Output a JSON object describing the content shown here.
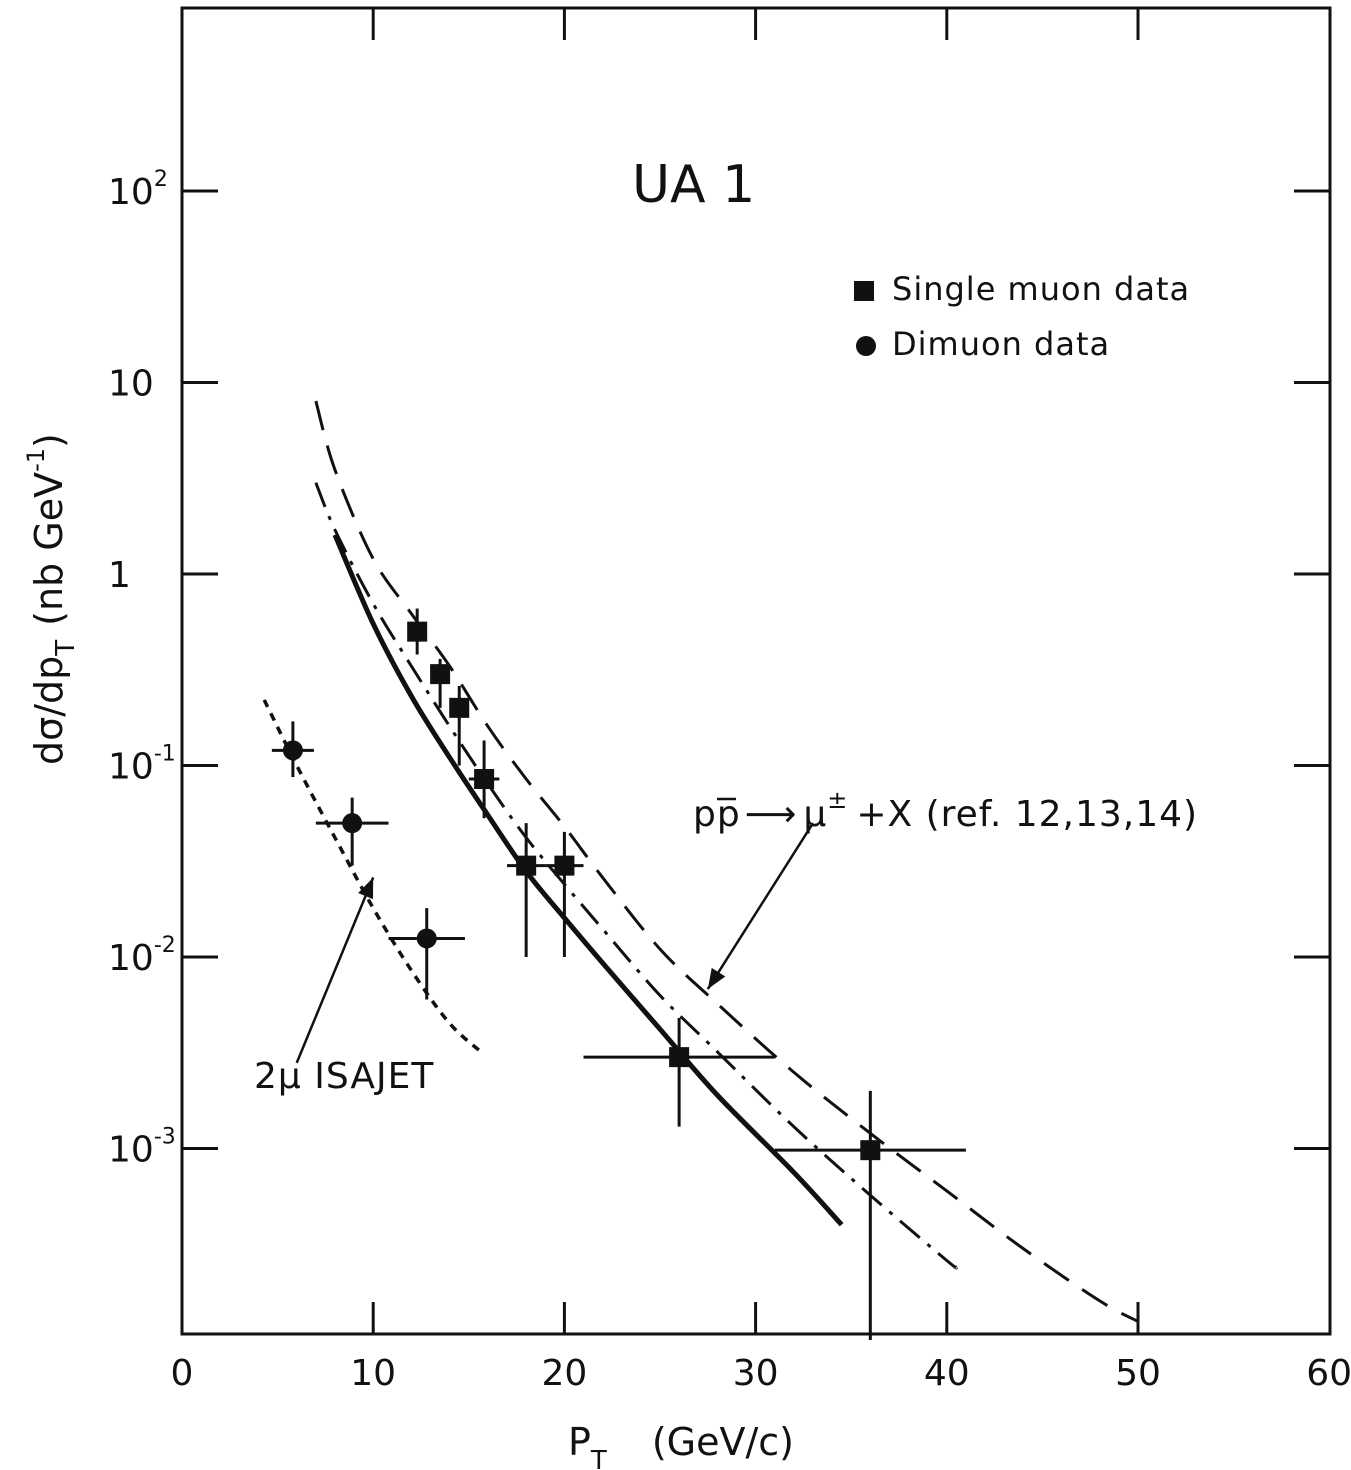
{
  "chart_data": {
    "type": "scatter",
    "title": "UA 1",
    "xlabel": "P",
    "xlabel_sub": "T",
    "xlabel_units": "(GeV/c)",
    "ylabel": "dσ/dp",
    "ylabel_sub": "T",
    "ylabel_units_prefix": "(nb GeV",
    "ylabel_units_exp": "-1",
    "ylabel_units_suffix": ")",
    "xlim": [
      0,
      60
    ],
    "ylim": [
      0.0001,
      1000
    ],
    "yscale": "log",
    "x_ticks": [
      0,
      10,
      20,
      30,
      40,
      50,
      60
    ],
    "x_tick_labels": [
      "0",
      "10",
      "20",
      "30",
      "40",
      "50",
      "60"
    ],
    "y_ticks": [
      {
        "value": 100,
        "base": "10",
        "exp": "2"
      },
      {
        "value": 10,
        "base": "10",
        "exp": ""
      },
      {
        "value": 1,
        "base": "1",
        "exp": ""
      },
      {
        "value": 0.1,
        "base": "10",
        "exp": "-1"
      },
      {
        "value": 0.01,
        "base": "10",
        "exp": "-2"
      },
      {
        "value": 0.001,
        "base": "10",
        "exp": "-3"
      }
    ],
    "legend_position": "top-right",
    "legend": [
      {
        "marker": "square",
        "label": "Single muon data"
      },
      {
        "marker": "circle",
        "label": "Dimuon data"
      }
    ],
    "series": [
      {
        "name": "Single muon data",
        "marker": "square",
        "points": [
          {
            "x": 12.3,
            "y": 0.5,
            "xerr": [
              0.3,
              0.3
            ],
            "yerr": [
              0.38,
              0.66
            ]
          },
          {
            "x": 13.5,
            "y": 0.3,
            "xerr": [
              0.3,
              0.3
            ],
            "yerr": [
              0.2,
              0.36
            ]
          },
          {
            "x": 14.5,
            "y": 0.2,
            "xerr": [
              0.3,
              0.3
            ],
            "yerr": [
              0.1,
              0.26
            ]
          },
          {
            "x": 15.8,
            "y": 0.085,
            "xerr": [
              0.8,
              0.8
            ],
            "yerr": [
              0.053,
              0.135
            ]
          },
          {
            "x": 18,
            "y": 0.03,
            "xerr": [
              1,
              1
            ],
            "yerr": [
              0.01,
              0.05
            ]
          },
          {
            "x": 20,
            "y": 0.03,
            "xerr": [
              1,
              1
            ],
            "yerr": [
              0.01,
              0.045
            ]
          },
          {
            "x": 26,
            "y": 0.003,
            "xerr": [
              5,
              5
            ],
            "yerr": [
              0.0013,
              0.0048
            ]
          },
          {
            "x": 36,
            "y": 0.00098,
            "xerr": [
              5,
              5
            ],
            "yerr": [
              0.0001,
              0.002
            ]
          }
        ]
      },
      {
        "name": "Dimuon data",
        "marker": "circle",
        "points": [
          {
            "x": 5.8,
            "y": 0.12,
            "xerr": [
              1.1,
              1.1
            ],
            "yerr": [
              0.087,
              0.17
            ]
          },
          {
            "x": 8.9,
            "y": 0.05,
            "xerr": [
              1.9,
              1.9
            ],
            "yerr": [
              0.03,
              0.068
            ]
          },
          {
            "x": 12.8,
            "y": 0.0125,
            "xerr": [
              2,
              2
            ],
            "yerr": [
              0.006,
              0.018
            ]
          }
        ]
      }
    ],
    "curves": [
      {
        "style": "dashed-long",
        "points": [
          [
            7,
            8
          ],
          [
            8,
            3.5
          ],
          [
            10,
            1.2
          ],
          [
            12,
            0.62
          ],
          [
            14,
            0.33
          ],
          [
            16,
            0.16
          ],
          [
            18,
            0.085
          ],
          [
            20,
            0.048
          ],
          [
            22,
            0.026
          ],
          [
            25,
            0.011
          ],
          [
            28,
            0.0057
          ],
          [
            32,
            0.0025
          ],
          [
            36,
            0.0012
          ],
          [
            40,
            0.0006
          ],
          [
            44,
            0.0003
          ],
          [
            48,
            0.00016
          ],
          [
            50,
            0.000125
          ]
        ]
      },
      {
        "style": "dash-dot",
        "points": [
          [
            7,
            3
          ],
          [
            8,
            1.7
          ],
          [
            10,
            0.7
          ],
          [
            12,
            0.33
          ],
          [
            14,
            0.16
          ],
          [
            16,
            0.08
          ],
          [
            18,
            0.042
          ],
          [
            20,
            0.024
          ],
          [
            22,
            0.014
          ],
          [
            25,
            0.0063
          ],
          [
            28,
            0.0032
          ],
          [
            32,
            0.0013
          ],
          [
            36,
            0.00057
          ],
          [
            40,
            0.00026
          ],
          [
            40.5,
            0.00024
          ]
        ]
      },
      {
        "style": "solid",
        "points": [
          [
            8,
            1.6
          ],
          [
            10,
            0.55
          ],
          [
            12,
            0.23
          ],
          [
            14,
            0.11
          ],
          [
            16,
            0.055
          ],
          [
            18,
            0.028
          ],
          [
            20,
            0.016
          ],
          [
            22,
            0.0093
          ],
          [
            25,
            0.0042
          ],
          [
            28,
            0.0019
          ],
          [
            32,
            0.00075
          ],
          [
            34.5,
            0.0004
          ]
        ]
      },
      {
        "style": "dotted",
        "points": [
          [
            4.3,
            0.22
          ],
          [
            6,
            0.1
          ],
          [
            8,
            0.042
          ],
          [
            10,
            0.018
          ],
          [
            12,
            0.0085
          ],
          [
            14,
            0.0045
          ],
          [
            15.8,
            0.0031
          ]
        ]
      }
    ],
    "annotations": [
      {
        "text": "pp̄ ⟶ μ± + X (ref. 12,13,14)",
        "parts": {
          "pre": "pp",
          "bar": "p",
          "arrow": "⟶",
          "mu": "μ",
          "sup": "±",
          "post": "+X (ref. 12,13,14)"
        },
        "arrow_from": [
          33,
          0.05
        ],
        "arrow_to": [
          27.5,
          0.0068
        ]
      },
      {
        "text": "2μ ISAJET",
        "arrow_from": [
          6,
          0.0028
        ],
        "arrow_to": [
          10,
          0.026
        ]
      }
    ]
  }
}
